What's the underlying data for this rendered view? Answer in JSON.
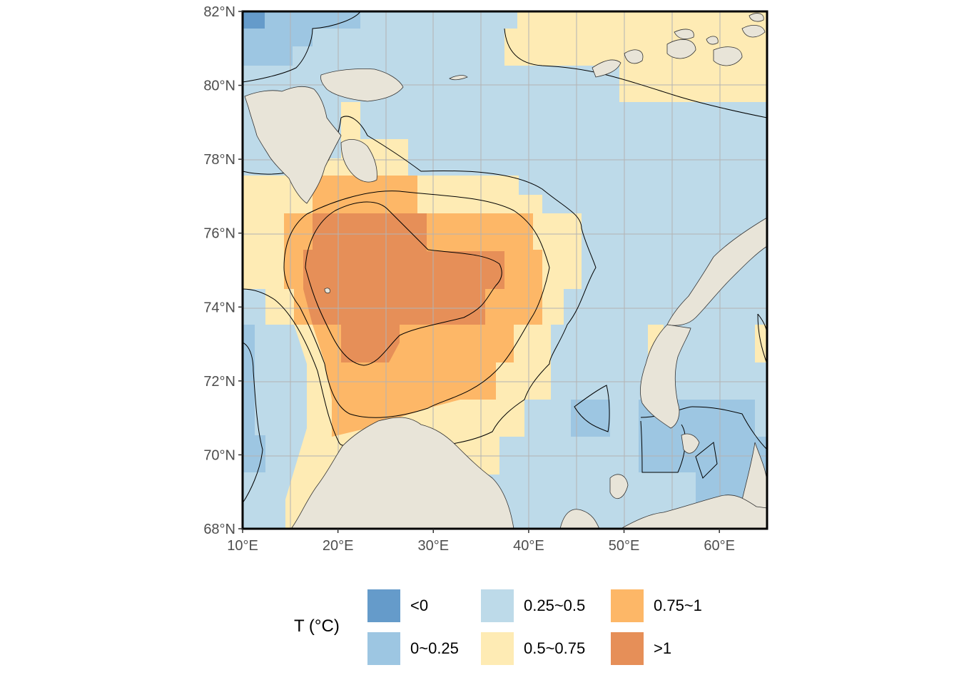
{
  "map": {
    "x_axis": {
      "ticks": [
        {
          "value": 10,
          "label": "10°E"
        },
        {
          "value": 20,
          "label": "20°E"
        },
        {
          "value": 30,
          "label": "30°E"
        },
        {
          "value": 40,
          "label": "40°E"
        },
        {
          "value": 50,
          "label": "50°E"
        },
        {
          "value": 60,
          "label": "60°E"
        }
      ],
      "range": [
        10,
        65
      ]
    },
    "y_axis": {
      "ticks": [
        {
          "value": 68,
          "label": "68°N"
        },
        {
          "value": 70,
          "label": "70°N"
        },
        {
          "value": 72,
          "label": "72°N"
        },
        {
          "value": 74,
          "label": "74°N"
        },
        {
          "value": 76,
          "label": "76°N"
        },
        {
          "value": 78,
          "label": "78°N"
        },
        {
          "value": 80,
          "label": "80°N"
        },
        {
          "value": 82,
          "label": "82°N"
        }
      ],
      "range": [
        68,
        82
      ]
    },
    "grid": true,
    "land_color": "#e8e4d8",
    "legend_position": "bottom"
  },
  "legend": {
    "title": "T (°C)",
    "items": [
      {
        "label": "<0",
        "color": "#659bca"
      },
      {
        "label": "0~0.25",
        "color": "#9dc6e2"
      },
      {
        "label": "0.25~0.5",
        "color": "#bddae9"
      },
      {
        "label": "0.5~0.75",
        "color": "#feebb4"
      },
      {
        "label": "0.75~1",
        "color": "#fdb767"
      },
      {
        "label": ">1",
        "color": "#e68f58"
      }
    ]
  }
}
